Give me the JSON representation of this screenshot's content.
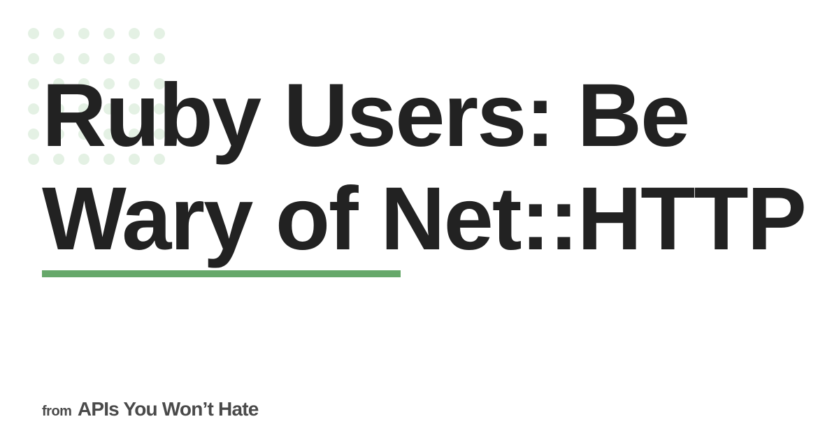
{
  "title": {
    "line1": "Ruby Users: Be",
    "line2": "Wary of Net::HTTP"
  },
  "footer": {
    "prefix": "from",
    "site": "APIs You Won’t Hate"
  },
  "colors": {
    "title_text": "#222222",
    "accent_bar": "#66a86a",
    "dots": "#e4f1e4",
    "footer_text": "#4a4a4a",
    "background": "#ffffff"
  }
}
